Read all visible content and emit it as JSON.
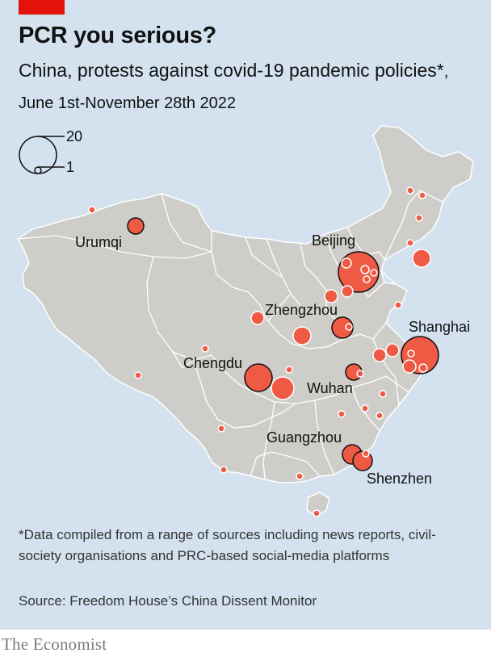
{
  "title": "PCR you serious?",
  "subtitle": {
    "main": "China, protests against covid-19 pandemic policies*",
    "dates": ", June 1st-November 28th 2022"
  },
  "legend": {
    "max_label": "20",
    "min_label": "1"
  },
  "cities": {
    "urumqi": "Urumqi",
    "beijing": "Beijing",
    "zhengzhou": "Zhengzhou",
    "shanghai": "Shanghai",
    "chengdu": "Chengdu",
    "wuhan": "Wuhan",
    "guangzhou": "Guangzhou",
    "shenzhen": "Shenzhen"
  },
  "note": "*Data compiled from a range of sources including news reports, civil-society organisations and PRC-based social-media platforms",
  "source": "Source: Freedom House’s China Dissent Monitor",
  "brand": "The Economist",
  "colors": {
    "background": "#d3e2ee",
    "land": "#cfcdc9",
    "bubble": "#ef5a45",
    "brand_red": "#e3120b"
  }
}
